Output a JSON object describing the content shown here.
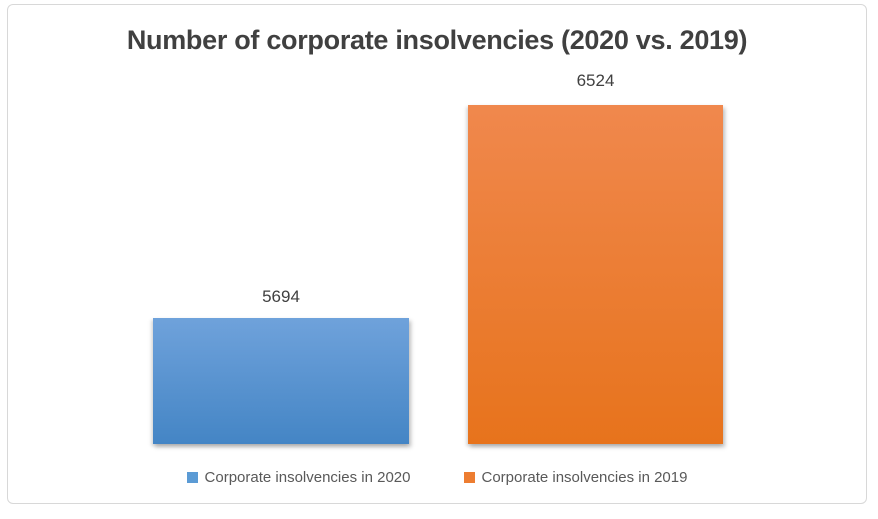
{
  "chart_data": {
    "type": "bar",
    "title": "Number of corporate insolvencies (2020 vs. 2019)",
    "series": [
      {
        "name": "Corporate insolvencies in 2020",
        "value": 5694,
        "color": "#5B9BD5",
        "fill_top": "#6FA2DB",
        "fill_bottom": "#4485C5"
      },
      {
        "name": "Corporate insolvencies in 2019",
        "value": 6524,
        "color": "#ED7D31",
        "fill_top": "#F0884D",
        "fill_bottom": "#E7731C"
      }
    ],
    "data_labels_shown": true,
    "legend_position": "bottom",
    "grid": false,
    "axes_hidden": true,
    "title_color": "#404040",
    "label_color": "#404040",
    "legend_text_color": "#595959",
    "card_border_color": "#D8D8D8"
  }
}
